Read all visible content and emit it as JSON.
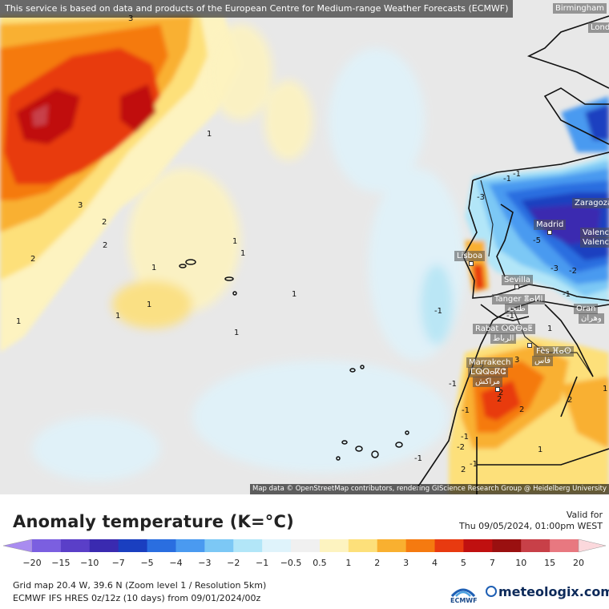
{
  "map": {
    "attribution_top": "This service is based on data and products of the European Centre for Medium-range Weather Forecasts (ECMWF)",
    "attribution_bottom": "Map data © OpenStreetMap contributors, rendering GIScience Research Group @ Heidelberg University",
    "cities": [
      {
        "name": "Birmingham"
      },
      {
        "name": "Lond"
      },
      {
        "name": "Zaragoza"
      },
      {
        "name": "Madrid"
      },
      {
        "name": "Valenc"
      },
      {
        "name": "Valenc"
      },
      {
        "name": "Lisboa"
      },
      {
        "name": "Sevilla"
      },
      {
        "name": "Tanger ⴻⴰⵍⵏ"
      },
      {
        "name": "طنجة"
      },
      {
        "name": "Oran"
      },
      {
        "name": "وهران"
      },
      {
        "name": "Rabat ⵕⵕⴱⴰⵟ"
      },
      {
        "name": "الرباط"
      },
      {
        "name": "Fès ⴼⴰⵙ"
      },
      {
        "name": "فاس"
      },
      {
        "name": "Marrakech"
      },
      {
        "name": "ⵎⵕⵕⴰⴽⵛ"
      },
      {
        "name": "مراكش"
      }
    ],
    "contour_labels": [
      "3",
      "1",
      "2",
      "1",
      "3",
      "2",
      "2",
      "1",
      "1",
      "1",
      "1",
      "1",
      "1",
      "1",
      "-1",
      "-1",
      "-3",
      "-5",
      "-3",
      "-2",
      "-1",
      "-1",
      "-1",
      "-1",
      "-1",
      "-2",
      "-1",
      "2",
      "2",
      "3",
      "2",
      "2",
      "1",
      "1",
      "2",
      "-1",
      "1",
      "-1",
      "1",
      "2"
    ]
  },
  "legend": {
    "title": "Anomaly temperature (K=°C)",
    "valid_label": "Valid for",
    "valid_date": "Thu 09/05/2024, 01:00pm WEST",
    "ticks": [
      "−20",
      "−15",
      "−10",
      "−7",
      "−5",
      "−4",
      "−3",
      "−2",
      "−1",
      "−0.5",
      "0.5",
      "1",
      "2",
      "3",
      "4",
      "5",
      "7",
      "10",
      "15",
      "20"
    ],
    "colors": [
      "#a98cf0",
      "#7b5fe0",
      "#5a3fc8",
      "#3a2ab0",
      "#1a3fc0",
      "#2a6ee0",
      "#4a9af0",
      "#7cc8f5",
      "#b2e6f8",
      "#dff3fb",
      "#f0f0f0",
      "#fdf3c0",
      "#fde07a",
      "#f9b030",
      "#f57a10",
      "#e83a10",
      "#c01010",
      "#9a1010",
      "#c84048",
      "#e87880",
      "#f4a8b0",
      "#fbd8dc"
    ],
    "grid_info": "Grid map 20.4 W, 39.6 N (Zoom level 1 / Resolution 5km)",
    "model_info": "ECMWF IFS HRES 0z/12z (10 days) from 09/01/2024/00z",
    "ecmwf_label": "ECMWF",
    "brand": "meteologix.com"
  }
}
